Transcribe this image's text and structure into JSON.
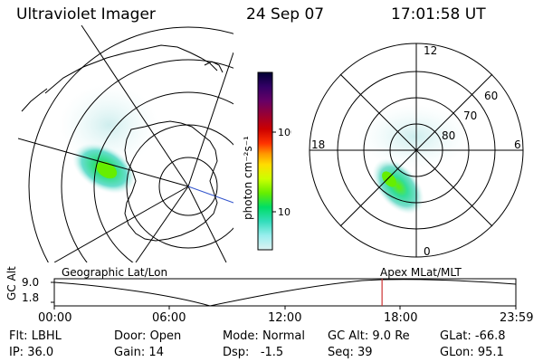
{
  "header": {
    "title": "Ultraviolet Imager",
    "date": "24 Sep 07",
    "time": "17:01:58 UT"
  },
  "colorbar": {
    "label": "photon cm⁻²s⁻¹",
    "ticks": [
      "100",
      "10"
    ],
    "scale": "log",
    "colors": [
      "#000033",
      "#330066",
      "#660066",
      "#990033",
      "#cc0000",
      "#ff3300",
      "#ff9900",
      "#ffdd00",
      "#ccff00",
      "#66ee00",
      "#00dd66",
      "#33ddbb",
      "#99eeee",
      "#ddf2f2"
    ]
  },
  "polar_plot": {
    "labels": {
      "top": "12",
      "right": "6",
      "bottom": "0",
      "left": "18"
    },
    "lat_labels": [
      "60",
      "70",
      "80"
    ]
  },
  "timeline": {
    "ylabel": "GC Alt",
    "left_label": "Geographic Lat/Lon",
    "right_label": "Apex MLat/MLT",
    "y_ticks": [
      "9.0",
      "1.8"
    ],
    "x_ticks": [
      "00:00",
      "06:00",
      "12:00",
      "18:00",
      "23:59"
    ],
    "current_time_hours": 17.03,
    "marker_color": "#cc3333"
  },
  "info": {
    "row1": [
      {
        "label": "Flt:",
        "value": "LBHL"
      },
      {
        "label": "Door:",
        "value": "Open"
      },
      {
        "label": "Mode:",
        "value": "Normal"
      },
      {
        "label": "GC Alt:",
        "value": "9.0 Re"
      },
      {
        "label": "GLat:",
        "value": "-66.8"
      }
    ],
    "row2": [
      {
        "label": "IP:",
        "value": "36.0"
      },
      {
        "label": "Gain:",
        "value": "14"
      },
      {
        "label": "Dsp:",
        "value": "  -1.5"
      },
      {
        "label": "Seq:",
        "value": "39"
      },
      {
        "label": "GLon:",
        "value": "95.1"
      }
    ]
  }
}
